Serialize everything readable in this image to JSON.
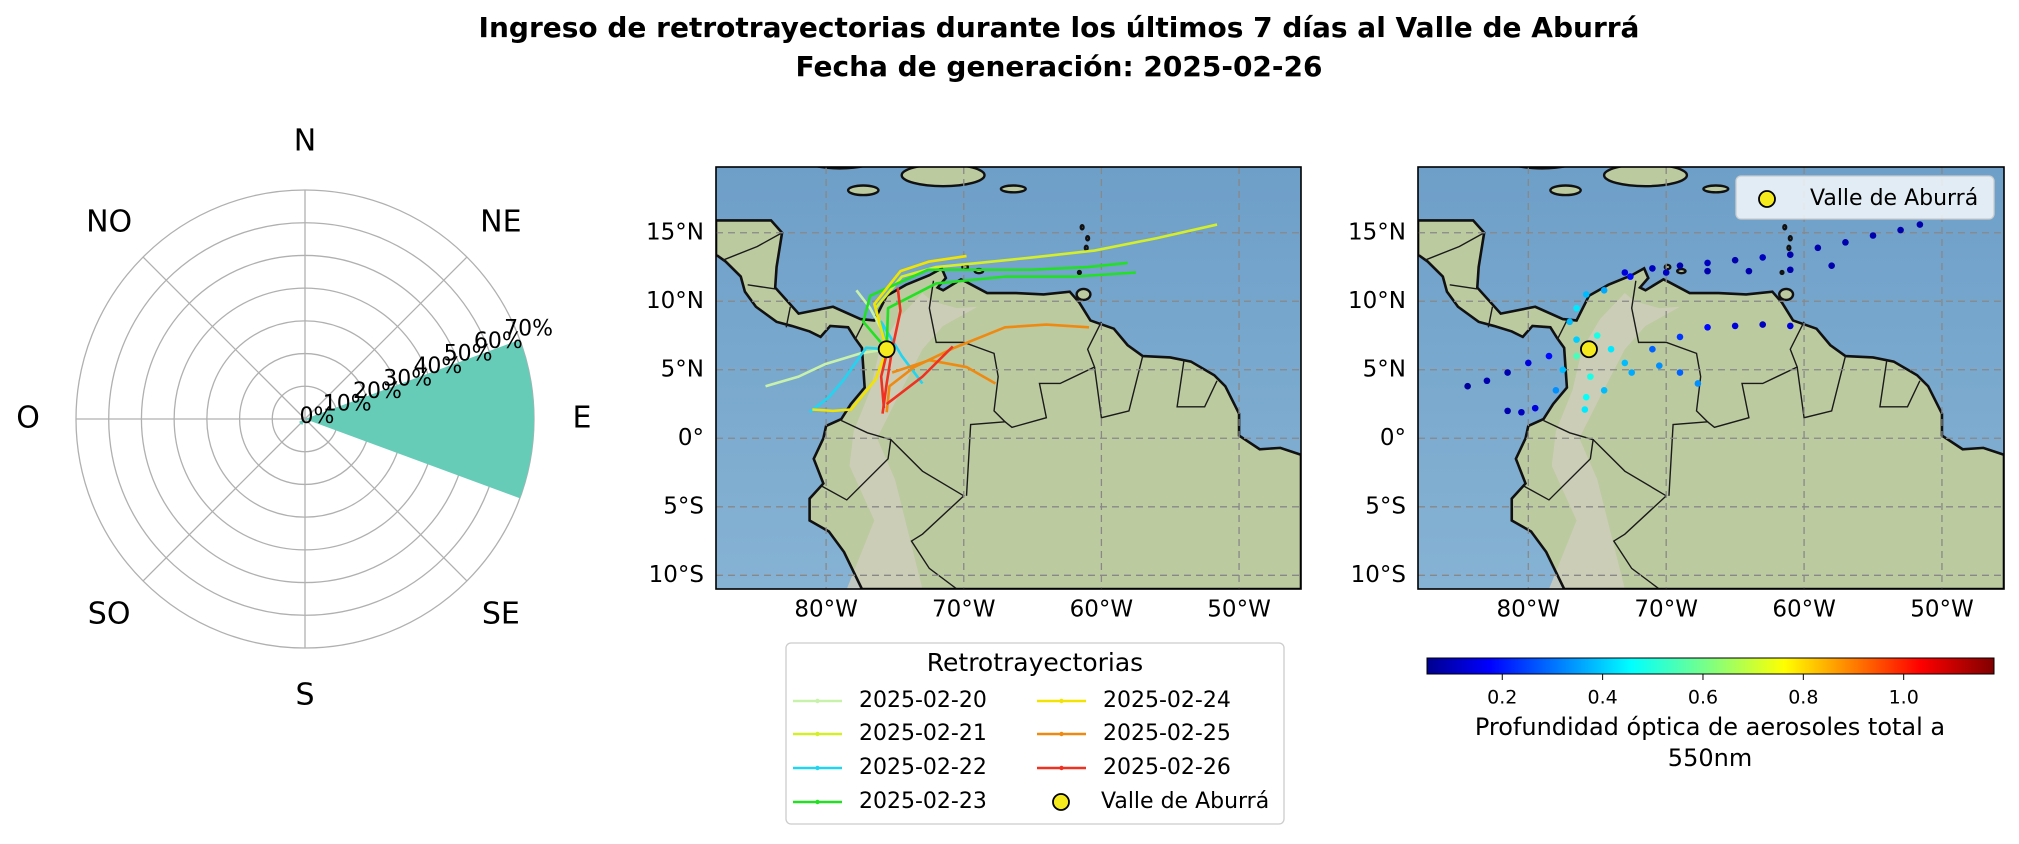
{
  "title": "Ingreso de retrotrayectorias durante los últimos 7 días al Valle de Aburrá",
  "subtitle": "Fecha de generación: 2025-02-26",
  "chart_data": [
    {
      "type": "polar_bar",
      "categories": [
        "N",
        "NE",
        "E",
        "SE",
        "S",
        "SO",
        "O",
        "NO"
      ],
      "values": [
        0,
        0,
        70,
        0,
        0,
        2,
        0,
        0
      ],
      "color": "#66ccb8",
      "rlim": [
        0,
        70
      ],
      "rticks": [
        {
          "value": 0,
          "label": "0%"
        },
        {
          "value": 10,
          "label": "10%"
        },
        {
          "value": 20,
          "label": "20%"
        },
        {
          "value": 30,
          "label": "30%"
        },
        {
          "value": 40,
          "label": "40%"
        },
        {
          "value": 50,
          "label": "50%"
        },
        {
          "value": 60,
          "label": "60%"
        },
        {
          "value": 70,
          "label": "70%"
        }
      ]
    },
    {
      "type": "trajectory_map",
      "xlim": [
        -88,
        -45.5
      ],
      "ylim": [
        -11,
        19.8
      ],
      "xticks": [
        {
          "value": -80,
          "label": "80°W"
        },
        {
          "value": -70,
          "label": "70°W"
        },
        {
          "value": -60,
          "label": "60°W"
        },
        {
          "value": -50,
          "label": "50°W"
        }
      ],
      "yticks": [
        {
          "value": -10,
          "label": "10°S"
        },
        {
          "value": -5,
          "label": "5°S"
        },
        {
          "value": 0,
          "label": "0°"
        },
        {
          "value": 5,
          "label": "5°N"
        },
        {
          "value": 10,
          "label": "10°N"
        },
        {
          "value": 15,
          "label": "15°N"
        }
      ],
      "grid": true,
      "legend_title": "Retrotrayectorias",
      "series": [
        {
          "name": "2025-02-20",
          "color": "#c8f2ac",
          "x": [
            -84.4,
            -82,
            -80.1,
            -77.5,
            -75.6,
            null,
            -77.8,
            -76.8,
            -76
          ],
          "y": [
            3.8,
            4.5,
            5.4,
            6.2,
            6.5,
            null,
            10.8,
            9.5,
            8
          ]
        },
        {
          "name": "2025-02-21",
          "color": "#d4ee2a",
          "x": [
            -51.6,
            -56,
            -60.5,
            -65,
            -68.9,
            -72,
            -74.5,
            -76.4,
            -75.6
          ],
          "y": [
            15.6,
            14.6,
            13.7,
            13.2,
            12.8,
            12.5,
            11.8,
            9.5,
            6.5
          ]
        },
        {
          "name": "2025-02-22",
          "color": "#22d4f0",
          "x": [
            -81.2,
            -79.8,
            -78.7,
            -77.1,
            -75.6,
            null,
            -73,
            -74.5,
            -76,
            -75.6
          ],
          "y": [
            1.9,
            3,
            4.3,
            6.6,
            6.5,
            null,
            4,
            6,
            8.5,
            6.5
          ]
        },
        {
          "name": "2025-02-23",
          "color": "#22e022",
          "x": [
            -58.1,
            -61,
            -65.1,
            -69,
            -72.6,
            -76.8,
            -77.3,
            -75.6,
            null,
            -57.5,
            -62,
            -67,
            -72,
            -75.5,
            -75.6
          ],
          "y": [
            12.8,
            12.5,
            12.3,
            12.3,
            12.3,
            10.4,
            8.5,
            6.5,
            null,
            12.1,
            11.8,
            11.8,
            11.3,
            9.5,
            6.5
          ]
        },
        {
          "name": "2025-02-24",
          "color": "#f2e400",
          "x": [
            -81,
            -79.5,
            -78.2,
            -76.4,
            -75.6,
            null,
            -69.8,
            -72.5,
            -74.6,
            -76.5,
            -75.6
          ],
          "y": [
            2.1,
            2,
            2.1,
            4.3,
            6.5,
            null,
            13.3,
            12.9,
            12.2,
            9.8,
            6.5
          ]
        },
        {
          "name": "2025-02-25",
          "color": "#ee8a12",
          "x": [
            -60.9,
            -64,
            -67,
            -70.7,
            -73.6,
            -75.4,
            -75.6,
            null,
            -67.7,
            -69.8,
            -72.5,
            -75.2
          ],
          "y": [
            8.1,
            8.3,
            8.1,
            6.6,
            5.2,
            3.8,
            1.9,
            null,
            4,
            5.2,
            5.7,
            4.8
          ]
        },
        {
          "name": "2025-02-26",
          "color": "#f03020",
          "x": [
            -75.9,
            -75.6,
            -75.2,
            -74.6,
            -74.8,
            null,
            -75.6,
            -73,
            -70.8,
            null,
            -75.8,
            -76,
            -75.4
          ],
          "y": [
            1.8,
            4,
            6.5,
            9.3,
            11,
            null,
            2.5,
            4.5,
            6.7,
            null,
            2.2,
            4.5,
            7
          ]
        }
      ],
      "point": {
        "name": "Valle de Aburrá",
        "x": -75.6,
        "y": 6.5,
        "color": "#f5ea1e"
      }
    },
    {
      "type": "aod_map",
      "xlim": [
        -88,
        -45.5
      ],
      "ylim": [
        -11,
        19.8
      ],
      "xticks": [
        {
          "value": -80,
          "label": "80°W"
        },
        {
          "value": -70,
          "label": "70°W"
        },
        {
          "value": -60,
          "label": "60°W"
        },
        {
          "value": -50,
          "label": "50°W"
        }
      ],
      "yticks": [
        {
          "value": -10,
          "label": "10°S"
        },
        {
          "value": -5,
          "label": "5°S"
        },
        {
          "value": 0,
          "label": "0°"
        },
        {
          "value": 5,
          "label": "5°N"
        },
        {
          "value": 10,
          "label": "10°N"
        },
        {
          "value": 15,
          "label": "15°N"
        }
      ],
      "grid": true,
      "points": {
        "x": [
          -51.6,
          -53,
          -55,
          -57,
          -59,
          -61,
          -63,
          -65,
          -67,
          -69,
          -71,
          -73,
          -58,
          -61,
          -64,
          -67,
          -70,
          -72.6,
          -84.4,
          -83,
          -81.5,
          -80,
          -78.5,
          -81.5,
          -80.5,
          -79.5,
          -61,
          -63,
          -65,
          -67,
          -69,
          -71,
          -67.7,
          -69,
          -70.5,
          -77,
          -76.5,
          -75.8,
          -74.5,
          -76.5,
          -75,
          -74,
          -73,
          -75.5,
          -75.8,
          -75.9,
          -74.5,
          -72.5,
          -77.5,
          -78,
          -76.5
        ],
        "y": [
          15.6,
          15.2,
          14.8,
          14.3,
          13.9,
          13.4,
          13.2,
          13,
          12.8,
          12.6,
          12.4,
          12.1,
          12.6,
          12.3,
          12.2,
          12.2,
          12.1,
          11.8,
          3.8,
          4.2,
          4.8,
          5.5,
          6,
          2,
          1.9,
          2.2,
          8.2,
          8.3,
          8.2,
          8.1,
          7.4,
          6.5,
          4,
          4.8,
          5.3,
          8.5,
          9.5,
          10.5,
          10.8,
          7.2,
          7.5,
          6.5,
          5.5,
          4.5,
          3,
          2.1,
          3.5,
          4.8,
          5,
          3.5,
          6
        ],
        "values": [
          0.1,
          0.1,
          0.1,
          0.1,
          0.1,
          0.1,
          0.12,
          0.1,
          0.12,
          0.1,
          0.12,
          0.15,
          0.1,
          0.1,
          0.1,
          0.1,
          0.12,
          0.2,
          0.08,
          0.1,
          0.1,
          0.15,
          0.2,
          0.1,
          0.12,
          0.15,
          0.15,
          0.12,
          0.15,
          0.2,
          0.25,
          0.3,
          0.35,
          0.3,
          0.35,
          0.4,
          0.45,
          0.4,
          0.38,
          0.42,
          0.5,
          0.45,
          0.4,
          0.5,
          0.48,
          0.45,
          0.4,
          0.38,
          0.4,
          0.35,
          0.55
        ]
      },
      "point": {
        "name": "Valle de Aburrá",
        "x": -75.6,
        "y": 6.5,
        "color": "#f5ea1e"
      },
      "colorbar": {
        "label": "Profundidad óptica de aerosoles total a 550nm",
        "cmap": "jet",
        "lim": [
          0.05,
          1.18
        ],
        "ticks": [
          0.2,
          0.4,
          0.6,
          0.8,
          {
            "value": 1.0,
            "label": "1.0"
          }
        ]
      }
    }
  ]
}
